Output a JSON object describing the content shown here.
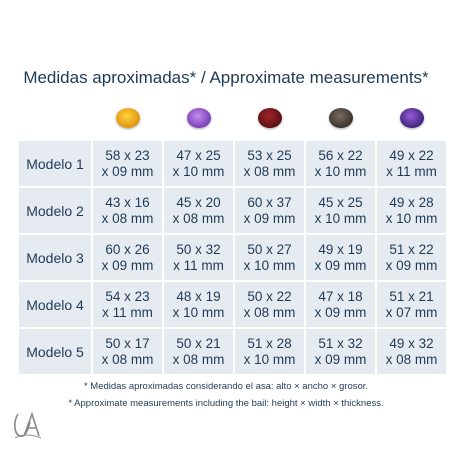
{
  "title": "Medidas aproximadas* / Approximate measurements*",
  "gems": [
    {
      "icon": "citrine-gem-icon",
      "color_center": "#ffd23a",
      "color_edge": "#d9880a"
    },
    {
      "icon": "amethyst-gem-icon",
      "color_center": "#c68cf0",
      "color_edge": "#6a2fa8"
    },
    {
      "icon": "garnet-gem-icon",
      "color_center": "#a3262a",
      "color_edge": "#4a0a0e"
    },
    {
      "icon": "smoky-quartz-gem-icon",
      "color_center": "#7a6c60",
      "color_edge": "#2e2822"
    },
    {
      "icon": "mystic-topaz-gem-icon",
      "color_center": "#9a5ad8",
      "color_edge": "#2a1a6a"
    }
  ],
  "rows": [
    {
      "label": "Modelo 1",
      "cells": [
        [
          "58 x 23",
          "x 09 mm"
        ],
        [
          "47 x 25",
          "x 10 mm"
        ],
        [
          "53 x 25",
          "x 08 mm"
        ],
        [
          "56 x 22",
          "x 10 mm"
        ],
        [
          "49 x 22",
          "x 11 mm"
        ]
      ]
    },
    {
      "label": "Modelo 2",
      "cells": [
        [
          "43 x 16",
          "x 08 mm"
        ],
        [
          "45 x 20",
          "x 08 mm"
        ],
        [
          "60 x 37",
          "x 09 mm"
        ],
        [
          "45 x 25",
          "x 10 mm"
        ],
        [
          "49 x 28",
          "x 10 mm"
        ]
      ]
    },
    {
      "label": "Modelo 3",
      "cells": [
        [
          "60 x 26",
          "x 09 mm"
        ],
        [
          "50 x 32",
          "x 11 mm"
        ],
        [
          "50 x 27",
          "x 10 mm"
        ],
        [
          "49 x 19",
          "x 09 mm"
        ],
        [
          "51 x 22",
          "x 09 mm"
        ]
      ]
    },
    {
      "label": "Modelo 4",
      "cells": [
        [
          "54 x 23",
          "x 11 mm"
        ],
        [
          "48 x 19",
          "x 10 mm"
        ],
        [
          "50 x 22",
          "x 08 mm"
        ],
        [
          "47 x 18",
          "x 09 mm"
        ],
        [
          "51 x 21",
          "x 07 mm"
        ]
      ]
    },
    {
      "label": "Modelo 5",
      "cells": [
        [
          "50 x 17",
          "x 08 mm"
        ],
        [
          "50 x 21",
          "x 08 mm"
        ],
        [
          "51 x 28",
          "x 10 mm"
        ],
        [
          "51 x 32",
          "x 09 mm"
        ],
        [
          "49 x 32",
          "x 08 mm"
        ]
      ]
    }
  ],
  "notes": {
    "es": "* Medidas aproximadas considerando el asa: alto × ancho × grosor.",
    "en": "* Approximate measurements including the bail: height × width × thickness."
  },
  "logo": {
    "text": "UA",
    "color": "#8a8a8a"
  }
}
